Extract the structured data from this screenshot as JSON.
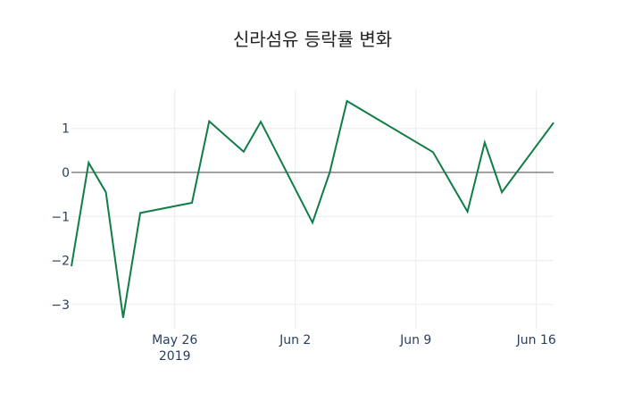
{
  "title": "신라섬유 등락률 변화",
  "chart_data": {
    "type": "line",
    "title": "신라섬유 등락률 변화",
    "xlabel": "",
    "ylabel": "",
    "x": [
      "2019-05-20",
      "2019-05-21",
      "2019-05-22",
      "2019-05-23",
      "2019-05-24",
      "2019-05-27",
      "2019-05-28",
      "2019-05-30",
      "2019-05-31",
      "2019-06-03",
      "2019-06-04",
      "2019-06-05",
      "2019-06-10",
      "2019-06-12",
      "2019-06-13",
      "2019-06-14",
      "2019-06-17"
    ],
    "series": [
      {
        "name": "등락률",
        "color": "#0f7d45",
        "values": [
          -2.13,
          0.22,
          -0.45,
          -3.3,
          -0.92,
          -0.69,
          1.16,
          0.47,
          1.15,
          -1.14,
          0.0,
          1.62,
          0.46,
          -0.89,
          0.68,
          -0.45,
          1.13
        ]
      }
    ],
    "ylim": [
      -3.5,
      1.9
    ],
    "yticks": [
      1,
      0,
      -1,
      -2,
      -3
    ],
    "ytick_labels": [
      "1",
      "0",
      "−1",
      "−2",
      "−3"
    ],
    "xticks": [
      {
        "date": "2019-05-26",
        "label": "May 26",
        "sublabel": "2019"
      },
      {
        "date": "2019-06-02",
        "label": "Jun 2",
        "sublabel": ""
      },
      {
        "date": "2019-06-09",
        "label": "Jun 9",
        "sublabel": ""
      },
      {
        "date": "2019-06-16",
        "label": "Jun 16",
        "sublabel": ""
      }
    ],
    "grid": true,
    "zeroline": true,
    "legend": false
  }
}
